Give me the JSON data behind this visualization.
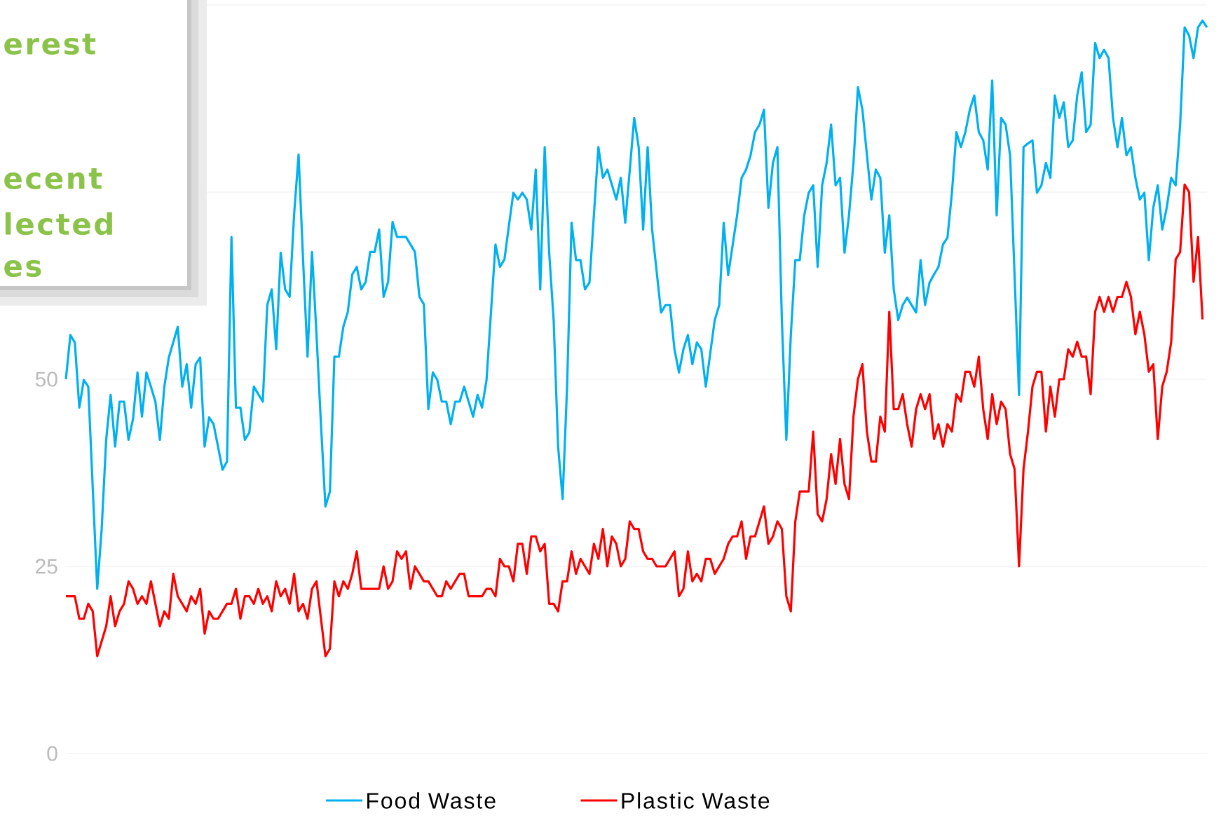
{
  "chart_data": {
    "type": "line",
    "annotations": [
      "erest",
      "ecent",
      "lected",
      "es"
    ],
    "categories": [
      null,
      null,
      null,
      null,
      null,
      null,
      null,
      null,
      null,
      null,
      null,
      null,
      null,
      null,
      null,
      null,
      null,
      null,
      null,
      null,
      null,
      null,
      null,
      null,
      null,
      null,
      null,
      null,
      null,
      null,
      null,
      null,
      null,
      null,
      null,
      null,
      null,
      null,
      null,
      null,
      null,
      null,
      null,
      null,
      null,
      null,
      null,
      null,
      null,
      null,
      null,
      null,
      null,
      null,
      null,
      null,
      null,
      null,
      null,
      null,
      null,
      null,
      null,
      null,
      null,
      null,
      null,
      null,
      null,
      null,
      null,
      null,
      null,
      null,
      null,
      null,
      null,
      null,
      null,
      null,
      null,
      null,
      null,
      null,
      null,
      null,
      null,
      null,
      null,
      null,
      null,
      null,
      null,
      null,
      null,
      null,
      null,
      null,
      null,
      null,
      null,
      null,
      null,
      null,
      null,
      null,
      null,
      null,
      null,
      null,
      null,
      null,
      null,
      null,
      null,
      null,
      null,
      null,
      null,
      null,
      null,
      null,
      null,
      null,
      null,
      null,
      null,
      null,
      null,
      null,
      null,
      null,
      null,
      null,
      null,
      null,
      null,
      null,
      null,
      null,
      null,
      null,
      null,
      null,
      null,
      null,
      null,
      null,
      null,
      null,
      null,
      null,
      null,
      null,
      null,
      null,
      null,
      null,
      null,
      null,
      null,
      null,
      null,
      null,
      null,
      null,
      null,
      null,
      null,
      null,
      null,
      null,
      null,
      null,
      null,
      null,
      null,
      null,
      null,
      null,
      null,
      null,
      null,
      null,
      null,
      null,
      null,
      null,
      null,
      null,
      null,
      null,
      null,
      null,
      null,
      null,
      null,
      null,
      null,
      null,
      null,
      null,
      null,
      null,
      null,
      null,
      null,
      null,
      null,
      null,
      null,
      null,
      null,
      null,
      null,
      null,
      null,
      null,
      null,
      null,
      null,
      null,
      null,
      null,
      null,
      null,
      null,
      null,
      null,
      null,
      null,
      null,
      null,
      null,
      null,
      null,
      null,
      null,
      null,
      null,
      null,
      null,
      null,
      null,
      null,
      null,
      null,
      null,
      null,
      null,
      null,
      null,
      null,
      null,
      null,
      null
    ],
    "ylim": [
      0,
      100
    ],
    "yticks": [
      0,
      25,
      50,
      {
        "value": 75,
        "label": null
      },
      {
        "value": 100,
        "label": null
      }
    ],
    "grid": "y",
    "tick_labels": "y",
    "legend": "bottom",
    "series": [
      {
        "name": "Food Waste",
        "color": "#00b0f0",
        "values": [
          50.0,
          55.9,
          54.9,
          46.2,
          49.9,
          49.0,
          35.5,
          22.0,
          30.0,
          41.9,
          47.9,
          41.0,
          47.0,
          47.0,
          41.9,
          44.7,
          50.9,
          45.0,
          50.9,
          49.0,
          47.0,
          41.9,
          49.0,
          52.9,
          null,
          57.0,
          49.0,
          52.0,
          46.2,
          52.0,
          52.9,
          41.0,
          44.9,
          44.0,
          41.0,
          37.9,
          39.0,
          69.0,
          46.2,
          46.2,
          41.9,
          42.9,
          49.0,
          48.0,
          47.0,
          59.9,
          62.0,
          54.0,
          66.9,
          62.0,
          61,
          72,
          80,
          66,
          53,
          67,
          56,
          44,
          33,
          35,
          53,
          53,
          57,
          59,
          64,
          65,
          62,
          63,
          67,
          67,
          70,
          61,
          63,
          71,
          69,
          69,
          69,
          68,
          67,
          61,
          60,
          46,
          50.9,
          49.9,
          47.0,
          47.0,
          44.0,
          47.0,
          47.0,
          49.0,
          47.0,
          45.0,
          47.9,
          46.2,
          49.9,
          59.0,
          68.0,
          65.0,
          66.0,
          70.5,
          74.9,
          74.0,
          74.9,
          74.0,
          70.0,
          78.0,
          62.0,
          81.0,
          66.9,
          57.9,
          41.0,
          34.0,
          49.0,
          70.9,
          65.9,
          65.9,
          62.0,
          62.9,
          72.0,
          81.0,
          76.9,
          78.0,
          76.0,
          74.0,
          76.9,
          70.9,
          77.9,
          84.9,
          81.0,
          70.0,
          81.0,
          70.0,
          64.5,
          58.9,
          59.9,
          59.9,
          54.0,
          50.9,
          54.0,
          55.9,
          52.0,
          54.9,
          54.0,
          49.0,
          53.5,
          57.9,
          59.9,
          70.9,
          63.9,
          67.9,
          71.9,
          76.9,
          78.0,
          79.9,
          83.0,
          84.0,
          86.0,
          72.9,
          78.9,
          81.0,
          57.9,
          41.9,
          55.9,
          65.9,
          65.9,
          71.9,
          74.9,
          75.9,
          65.0,
          75.9,
          78.9,
          84.0,
          75.9,
          76.9,
          66.9,
          71.9,
          78.9,
          89.0,
          86.0,
          80.0,
          74.0,
          78.0,
          76.9,
          66.9,
          71.9,
          62.0,
          57.9,
          59.9,
          60.9,
          59.9,
          58.9,
          65.9,
          59.9,
          62.9,
          64.0,
          65.0,
          68.0,
          68.9,
          74.9,
          83.0,
          81.0,
          83.0,
          86.0,
          87.9,
          83.0,
          81.9,
          78.0,
          89.9,
          71.9,
          84.9,
          84.0,
          79.9,
          63.9,
          47.9,
          81.0,
          81.5,
          81.9,
          74.9,
          75.9,
          78.9,
          76.9,
          87.9,
          84.9,
          87.0,
          81.0,
          81.9,
          87.9,
          91.0,
          83.0,
          84.0,
          94.9,
          92.9,
          94.0,
          92.9,
          84.9,
          81.0,
          84.9,
          79.9,
          81.0,
          76.9,
          74.0,
          74.9,
          65.9,
          72.9,
          75.9,
          70.0,
          72.9,
          76.9,
          75.9,
          84.0,
          97.0,
          95.9,
          92.9,
          97.0,
          97.9,
          97.0
        ]
      },
      {
        "name": "Plastic Waste",
        "color": "#ff0000",
        "values": [
          21,
          21,
          21,
          18,
          18,
          20,
          19,
          13,
          15,
          17,
          21,
          17,
          19,
          20,
          23,
          22,
          20,
          21,
          20,
          23,
          20,
          17,
          19,
          18,
          24,
          21,
          20,
          19,
          21,
          20,
          22,
          16,
          19,
          18,
          18,
          19,
          20,
          20,
          22,
          18,
          21,
          21,
          20,
          22,
          20,
          21,
          19,
          23,
          21,
          22,
          20,
          24,
          19,
          20,
          18,
          22,
          23,
          18,
          13,
          14,
          23,
          21,
          23,
          22,
          24,
          27,
          22,
          22,
          22,
          22,
          22,
          25,
          22,
          23,
          27,
          26,
          27,
          22,
          25,
          24,
          23,
          23,
          22,
          21,
          21,
          23,
          22,
          23,
          24,
          24,
          21,
          21,
          21,
          21,
          22,
          22,
          21,
          26,
          25,
          25,
          23,
          28,
          28,
          24,
          29,
          29,
          27,
          28,
          20,
          20,
          19,
          23,
          23,
          27,
          24,
          26,
          25,
          24,
          28,
          26,
          30,
          25,
          29,
          28,
          25,
          26,
          31,
          30,
          30,
          27,
          26,
          26,
          25,
          25,
          25,
          26,
          27,
          21,
          22,
          27,
          23,
          24,
          23,
          26,
          26,
          24,
          25,
          26,
          28,
          29,
          29,
          31,
          26,
          29,
          29,
          31,
          33,
          28,
          29,
          31,
          30,
          21,
          19,
          31,
          35,
          35,
          35,
          43,
          32,
          31,
          34,
          40,
          36,
          42,
          36,
          34,
          45,
          50,
          52,
          43,
          39,
          39,
          45,
          43,
          59,
          46,
          46,
          48,
          44,
          41,
          46,
          48,
          46,
          48,
          42,
          44,
          41,
          44,
          43,
          48,
          47,
          51,
          51,
          49,
          53,
          46,
          42,
          48,
          44,
          47,
          46,
          40,
          38,
          25,
          38,
          43,
          49,
          51,
          51,
          43,
          49,
          45,
          50,
          50,
          54,
          53,
          55,
          53,
          53,
          48,
          59,
          61,
          59,
          61,
          59,
          61,
          61,
          63,
          61,
          56,
          59,
          56,
          51,
          52,
          42,
          49,
          51,
          55,
          66,
          67,
          76,
          75,
          63,
          69,
          58,
          null
        ]
      }
    ]
  }
}
